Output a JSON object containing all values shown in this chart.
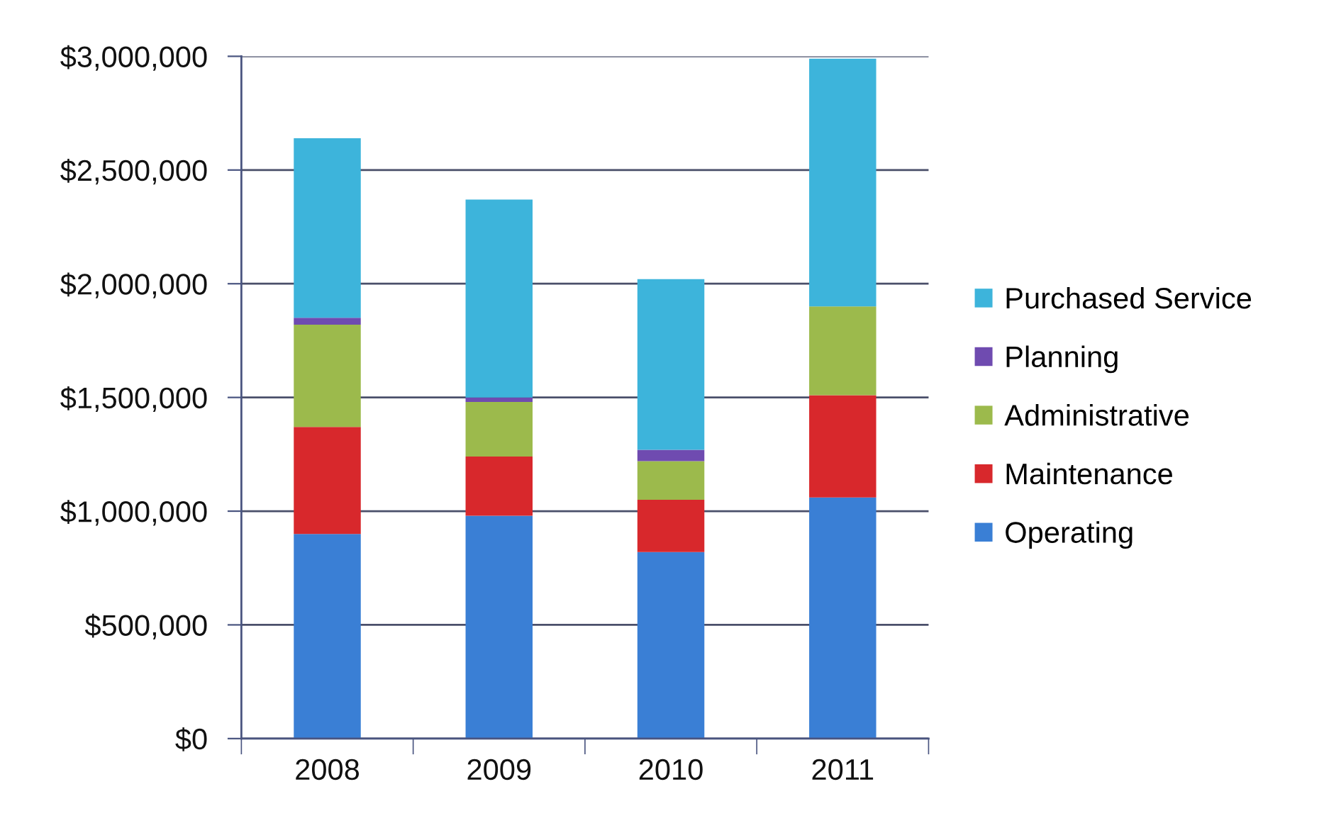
{
  "chart_data": {
    "type": "bar",
    "stacked": true,
    "categories": [
      "2008",
      "2009",
      "2010",
      "2011"
    ],
    "series": [
      {
        "name": "Operating",
        "color": "#3a7fd5",
        "values": [
          900000,
          980000,
          820000,
          1060000
        ]
      },
      {
        "name": "Maintenance",
        "color": "#d8282c",
        "values": [
          470000,
          260000,
          230000,
          450000
        ]
      },
      {
        "name": "Administrative",
        "color": "#9cba4c",
        "values": [
          450000,
          240000,
          170000,
          390000
        ]
      },
      {
        "name": "Planning",
        "color": "#6f4bb0",
        "values": [
          30000,
          20000,
          50000,
          null
        ]
      },
      {
        "name": "Purchased Service",
        "color": "#3db4db",
        "values": [
          790000,
          870000,
          750000,
          1090000
        ]
      }
    ],
    "ylim": [
      0,
      3000000
    ],
    "yticks": [
      {
        "value": 0,
        "label": "$0"
      },
      {
        "value": 500000,
        "label": "$500,000"
      },
      {
        "value": 1000000,
        "label": "$1,000,000"
      },
      {
        "value": 1500000,
        "label": "$1,500,000"
      },
      {
        "value": 2000000,
        "label": "$2,000,000"
      },
      {
        "value": 2500000,
        "label": "$2,500,000"
      },
      {
        "value": 3000000,
        "label": "$3,000,000"
      }
    ],
    "grid": "y",
    "legend": "right"
  }
}
